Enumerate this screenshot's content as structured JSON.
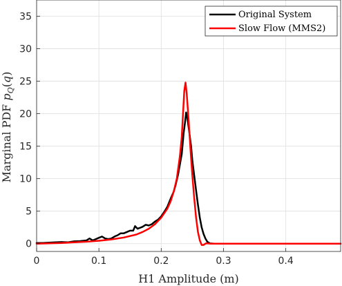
{
  "chart_data": {
    "type": "line",
    "xlabel": "H1 Amplitude (m)",
    "ylabel": "Marginal PDF p_Q(q)",
    "xlim": [
      0,
      0.488
    ],
    "ylim": [
      -1.2,
      37.5
    ],
    "xticks": [
      0,
      0.1,
      0.2,
      0.3,
      0.4
    ],
    "xtick_labels": [
      "0",
      "0.1",
      "0.2",
      "0.3",
      "0.4"
    ],
    "yticks": [
      0,
      5,
      10,
      15,
      20,
      25,
      30,
      35
    ],
    "ytick_labels": [
      "0",
      "5",
      "10",
      "15",
      "20",
      "25",
      "30",
      "35"
    ],
    "grid": true,
    "legend_position": "top-right",
    "series": [
      {
        "name": "Original System",
        "color": "#000000",
        "points": [
          [
            0,
            0.1
          ],
          [
            0.01,
            0.1
          ],
          [
            0.02,
            0.15
          ],
          [
            0.03,
            0.2
          ],
          [
            0.04,
            0.25
          ],
          [
            0.05,
            0.2
          ],
          [
            0.06,
            0.35
          ],
          [
            0.07,
            0.4
          ],
          [
            0.08,
            0.5
          ],
          [
            0.085,
            0.8
          ],
          [
            0.09,
            0.5
          ],
          [
            0.095,
            0.7
          ],
          [
            0.1,
            0.9
          ],
          [
            0.105,
            1.1
          ],
          [
            0.11,
            0.8
          ],
          [
            0.115,
            0.7
          ],
          [
            0.12,
            0.8
          ],
          [
            0.125,
            1.1
          ],
          [
            0.13,
            1.3
          ],
          [
            0.135,
            1.6
          ],
          [
            0.14,
            1.6
          ],
          [
            0.145,
            1.8
          ],
          [
            0.15,
            2.0
          ],
          [
            0.155,
            2.0
          ],
          [
            0.158,
            2.7
          ],
          [
            0.162,
            2.3
          ],
          [
            0.165,
            2.4
          ],
          [
            0.17,
            2.6
          ],
          [
            0.175,
            2.9
          ],
          [
            0.18,
            2.8
          ],
          [
            0.185,
            3.0
          ],
          [
            0.19,
            3.4
          ],
          [
            0.195,
            3.7
          ],
          [
            0.2,
            4.2
          ],
          [
            0.205,
            4.9
          ],
          [
            0.21,
            5.7
          ],
          [
            0.215,
            6.9
          ],
          [
            0.22,
            8.0
          ],
          [
            0.223,
            9.0
          ],
          [
            0.227,
            10.6
          ],
          [
            0.23,
            12.2
          ],
          [
            0.233,
            13.8
          ],
          [
            0.236,
            17.0
          ],
          [
            0.238,
            18.5
          ],
          [
            0.24,
            20.2
          ],
          [
            0.242,
            19.3
          ],
          [
            0.245,
            17.2
          ],
          [
            0.248,
            15.0
          ],
          [
            0.25,
            12.8
          ],
          [
            0.253,
            10.5
          ],
          [
            0.256,
            8.2
          ],
          [
            0.259,
            6.0
          ],
          [
            0.262,
            4.0
          ],
          [
            0.265,
            2.5
          ],
          [
            0.268,
            1.5
          ],
          [
            0.271,
            0.8
          ],
          [
            0.274,
            0.3
          ],
          [
            0.278,
            0.05
          ],
          [
            0.285,
            0.0
          ],
          [
            0.3,
            0.0
          ],
          [
            0.4,
            0.0
          ],
          [
            0.488,
            0.0
          ]
        ]
      },
      {
        "name": "Slow Flow (MMS2)",
        "color": "#ff0000",
        "points": [
          [
            0,
            0.0
          ],
          [
            0.02,
            0.05
          ],
          [
            0.04,
            0.1
          ],
          [
            0.06,
            0.2
          ],
          [
            0.08,
            0.3
          ],
          [
            0.1,
            0.45
          ],
          [
            0.12,
            0.65
          ],
          [
            0.14,
            0.95
          ],
          [
            0.16,
            1.4
          ],
          [
            0.17,
            1.8
          ],
          [
            0.18,
            2.3
          ],
          [
            0.19,
            3.0
          ],
          [
            0.2,
            4.0
          ],
          [
            0.21,
            5.4
          ],
          [
            0.215,
            6.5
          ],
          [
            0.22,
            8.0
          ],
          [
            0.225,
            10.0
          ],
          [
            0.23,
            13.5
          ],
          [
            0.233,
            16.5
          ],
          [
            0.235,
            20.0
          ],
          [
            0.237,
            23.5
          ],
          [
            0.239,
            24.8
          ],
          [
            0.241,
            23.0
          ],
          [
            0.244,
            19.0
          ],
          [
            0.247,
            14.5
          ],
          [
            0.25,
            10.5
          ],
          [
            0.253,
            7.0
          ],
          [
            0.256,
            4.0
          ],
          [
            0.259,
            1.8
          ],
          [
            0.262,
            0.5
          ],
          [
            0.265,
            -0.2
          ],
          [
            0.268,
            -0.2
          ],
          [
            0.272,
            0.05
          ],
          [
            0.28,
            0.0
          ],
          [
            0.3,
            0.0
          ],
          [
            0.4,
            0.0
          ],
          [
            0.488,
            0.0
          ]
        ]
      }
    ]
  }
}
